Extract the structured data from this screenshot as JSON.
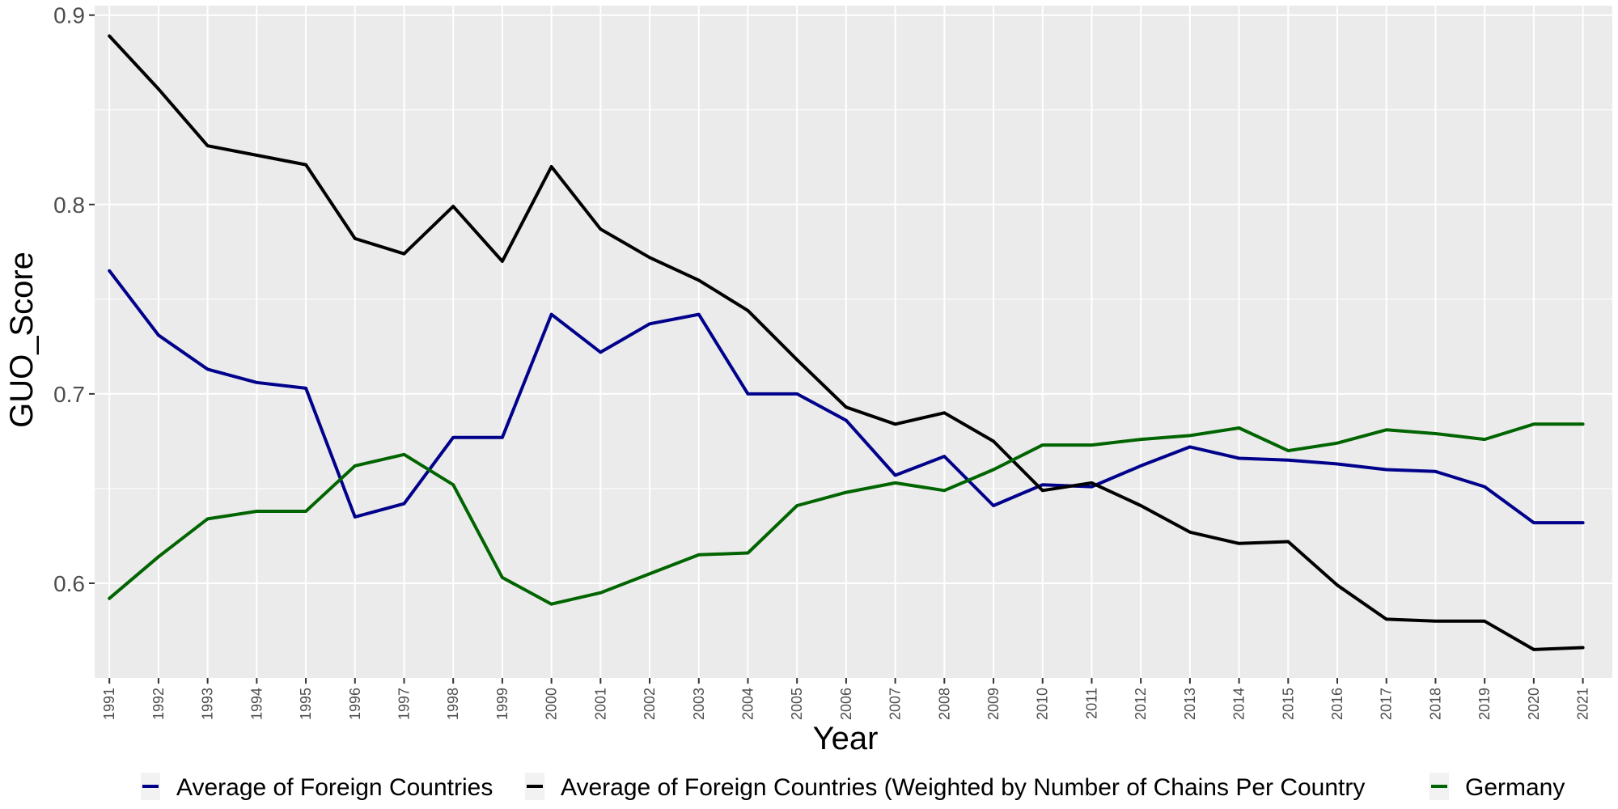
{
  "chart_data": {
    "type": "line",
    "xlabel": "Year",
    "ylabel": "GUO_Score",
    "x": [
      1991,
      1992,
      1993,
      1994,
      1995,
      1996,
      1997,
      1998,
      1999,
      2000,
      2001,
      2002,
      2003,
      2004,
      2005,
      2006,
      2007,
      2008,
      2009,
      2010,
      2011,
      2012,
      2013,
      2014,
      2015,
      2016,
      2017,
      2018,
      2019,
      2020,
      2021
    ],
    "xlim": [
      1990.7,
      2021.6
    ],
    "ylim": [
      0.55,
      0.905
    ],
    "yticks": [
      0.6,
      0.7,
      0.8,
      0.9
    ],
    "ytick_labels": [
      "0.6",
      "0.7",
      "0.8",
      "0.9"
    ],
    "grid": true,
    "legend_position": "bottom",
    "colors": {
      "panel_background": "#EBEBEB",
      "grid": "#FFFFFF"
    },
    "series": [
      {
        "name": "Average of Foreign Countries",
        "color": "#00008B",
        "values": [
          0.765,
          0.731,
          0.713,
          0.706,
          0.703,
          0.635,
          0.642,
          0.677,
          0.677,
          0.742,
          0.722,
          0.737,
          0.742,
          0.7,
          0.7,
          0.686,
          0.657,
          0.667,
          0.641,
          0.652,
          0.651,
          0.662,
          0.672,
          0.666,
          0.665,
          0.663,
          0.66,
          0.659,
          0.651,
          0.632,
          0.632
        ]
      },
      {
        "name": "Average of Foreign Countries (Weighted by Number of Chains Per Country",
        "color": "#000000",
        "values": [
          0.889,
          0.861,
          0.831,
          0.826,
          0.821,
          0.782,
          0.774,
          0.799,
          0.77,
          0.82,
          0.787,
          0.772,
          0.76,
          0.744,
          0.718,
          0.693,
          0.684,
          0.69,
          0.675,
          0.649,
          0.653,
          0.641,
          0.627,
          0.621,
          0.622,
          0.599,
          0.581,
          0.58,
          0.58,
          0.565,
          0.566
        ]
      },
      {
        "name": "Germany",
        "color": "#006400",
        "values": [
          0.592,
          0.614,
          0.634,
          0.638,
          0.638,
          0.662,
          0.668,
          0.652,
          0.603,
          0.589,
          0.595,
          0.605,
          0.615,
          0.616,
          0.641,
          0.648,
          0.653,
          0.649,
          0.66,
          0.673,
          0.673,
          0.676,
          0.678,
          0.682,
          0.67,
          0.674,
          0.681,
          0.679,
          0.676,
          0.684,
          0.684
        ]
      }
    ]
  }
}
